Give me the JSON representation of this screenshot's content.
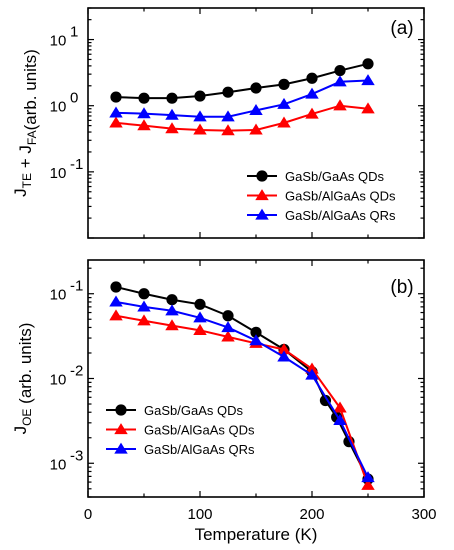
{
  "chart_data": [
    {
      "type": "line",
      "panel_label": "(a)",
      "ylabel": "J_TE + J_FA(arb. units)",
      "ylabel_parts": {
        "j1": "J",
        "sub1": "TE",
        "mid": " + J",
        "sub2": "FA",
        "tail": "(arb. units)"
      },
      "yscale": "log",
      "ylim": [
        0.01,
        30
      ],
      "xlim": [
        0,
        300
      ],
      "yticks": [
        {
          "value": 0.1,
          "base": "10",
          "exp": "-1"
        },
        {
          "value": 1,
          "base": "10",
          "exp": "0"
        },
        {
          "value": 10,
          "base": "10",
          "exp": "1"
        }
      ],
      "legend_position": "lower-right",
      "series": [
        {
          "name": "GaSb/GaAs QDs",
          "color": "#000000",
          "marker": "circle",
          "x": [
            25,
            50,
            75,
            100,
            125,
            150,
            175,
            200,
            225,
            250
          ],
          "y": [
            1.35,
            1.3,
            1.3,
            1.4,
            1.6,
            1.85,
            2.1,
            2.6,
            3.4,
            4.3
          ]
        },
        {
          "name": "GaSb/AlGaAs QDs",
          "color": "#ff0000",
          "marker": "triangle",
          "x": [
            25,
            50,
            75,
            100,
            125,
            150,
            175,
            200,
            225,
            250
          ],
          "y": [
            0.55,
            0.5,
            0.45,
            0.43,
            0.42,
            0.43,
            0.55,
            0.75,
            1.0,
            0.9
          ]
        },
        {
          "name": "GaSb/AlGaAs QRs",
          "color": "#0000ff",
          "marker": "triangle",
          "x": [
            25,
            50,
            75,
            100,
            125,
            150,
            175,
            200,
            225,
            250
          ],
          "y": [
            0.78,
            0.76,
            0.72,
            0.68,
            0.68,
            0.85,
            1.05,
            1.5,
            2.3,
            2.4
          ]
        }
      ]
    },
    {
      "type": "line",
      "panel_label": "(b)",
      "ylabel": "J_OE (arb. units)",
      "ylabel_parts": {
        "j1": "J",
        "sub1": "OE",
        "tail": " (arb. units)"
      },
      "yscale": "log",
      "ylim": [
        0.0004,
        0.25
      ],
      "xlim": [
        0,
        300
      ],
      "xlabel": "Temperature (K)",
      "xticks": [
        0,
        100,
        200,
        300
      ],
      "yticks": [
        {
          "value": 0.001,
          "base": "10",
          "exp": "-3"
        },
        {
          "value": 0.01,
          "base": "10",
          "exp": "-2"
        },
        {
          "value": 0.1,
          "base": "10",
          "exp": "-1"
        }
      ],
      "legend_position": "lower-left",
      "series": [
        {
          "name": "GaSb/GaAs QDs",
          "color": "#000000",
          "marker": "circle",
          "x": [
            25,
            50,
            75,
            100,
            125,
            150,
            175,
            200,
            212,
            222,
            233,
            250
          ],
          "y": [
            0.12,
            0.1,
            0.085,
            0.075,
            0.055,
            0.035,
            0.022,
            0.012,
            0.0055,
            0.0035,
            0.0018,
            0.00065
          ]
        },
        {
          "name": "GaSb/AlGaAs QDs",
          "color": "#ff0000",
          "marker": "triangle",
          "x": [
            25,
            50,
            75,
            100,
            125,
            150,
            175,
            200,
            225,
            250
          ],
          "y": [
            0.055,
            0.048,
            0.042,
            0.037,
            0.031,
            0.026,
            0.022,
            0.013,
            0.0045,
            0.00055
          ]
        },
        {
          "name": "GaSb/AlGaAs QRs",
          "color": "#0000ff",
          "marker": "triangle",
          "x": [
            25,
            50,
            75,
            100,
            125,
            150,
            175,
            200,
            225,
            250
          ],
          "y": [
            0.08,
            0.07,
            0.063,
            0.052,
            0.04,
            0.028,
            0.018,
            0.011,
            0.0032,
            0.00068
          ]
        }
      ]
    }
  ]
}
